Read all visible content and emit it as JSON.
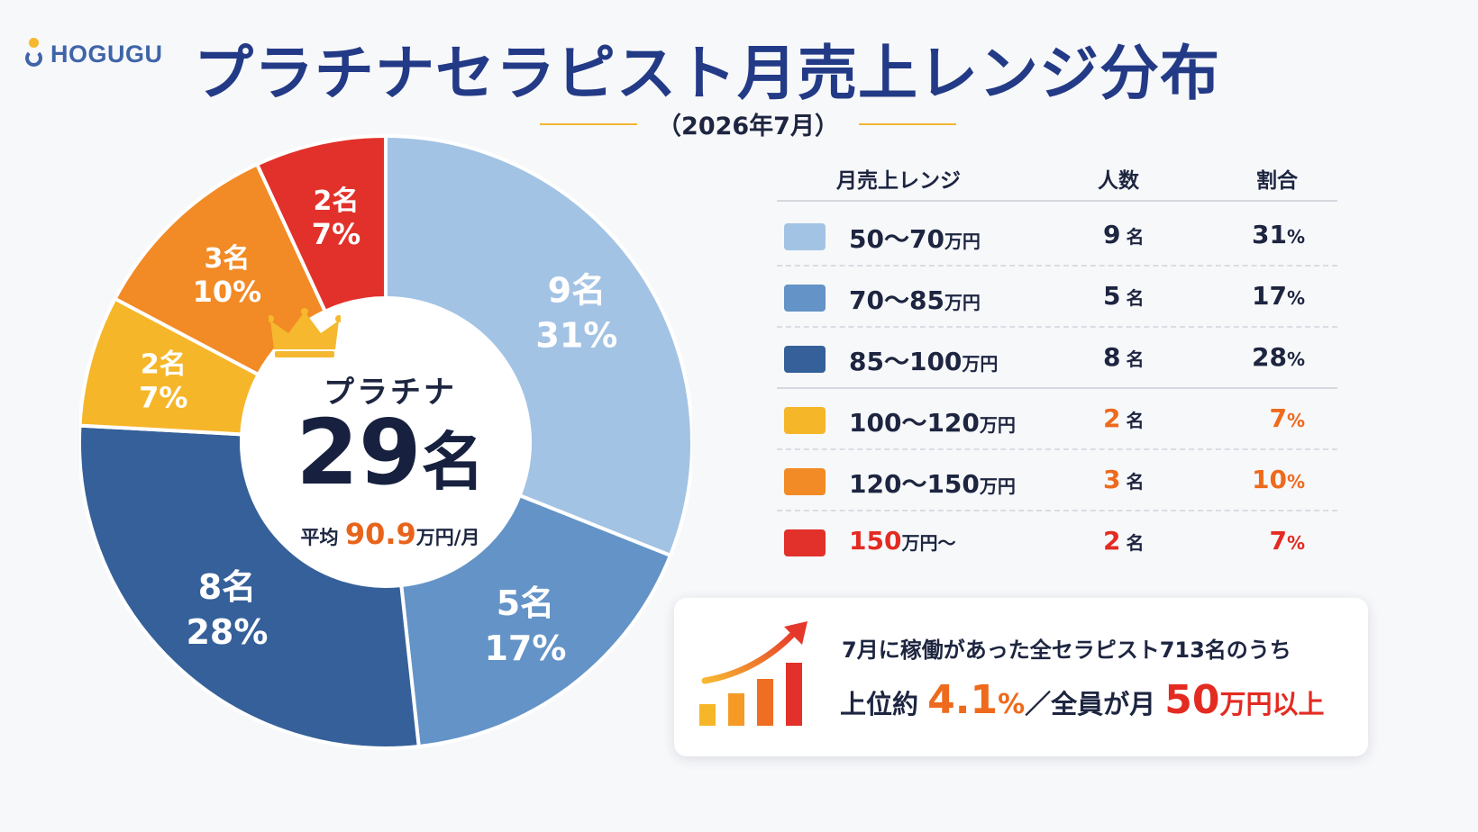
{
  "brand": {
    "logo_text": "HOGUGU"
  },
  "title": "プラチナセラピスト月売上レンジ分布",
  "subtitle": "（2026年7月）",
  "center": {
    "label": "プラチナ",
    "total_count": "29",
    "total_unit": "名",
    "avg_prefix": "平均",
    "avg_value": "90.9",
    "avg_unit": "万円/月"
  },
  "table": {
    "headers": {
      "range": "月売上レンジ",
      "count": "人数",
      "share": "割合"
    },
    "rows": [
      {
        "range": "50〜70",
        "range_unit": "万円",
        "count": "9",
        "count_unit": "名",
        "pct": "31",
        "pct_unit": "%"
      },
      {
        "range": "70〜85",
        "range_unit": "万円",
        "count": "5",
        "count_unit": "名",
        "pct": "17",
        "pct_unit": "%"
      },
      {
        "range": "85〜100",
        "range_unit": "万円",
        "count": "8",
        "count_unit": "名",
        "pct": "28",
        "pct_unit": "%"
      },
      {
        "range": "100〜120",
        "range_unit": "万円",
        "count": "2",
        "count_unit": "名",
        "pct": "7",
        "pct_unit": "%"
      },
      {
        "range": "120〜150",
        "range_unit": "万円",
        "count": "3",
        "count_unit": "名",
        "pct": "10",
        "pct_unit": "%"
      },
      {
        "range": "150",
        "range_unit": "万円〜",
        "count": "2",
        "count_unit": "名",
        "pct": "7",
        "pct_unit": "%"
      }
    ]
  },
  "colors": {
    "seg_50_70": "#a3c3e4",
    "seg_70_85": "#6393c7",
    "seg_85_100": "#35609a",
    "seg_100_120": "#f6b629",
    "seg_120_150": "#f28a25",
    "seg_150_plus": "#e2312a",
    "title": "#233a86",
    "accent_orange": "#ee6a1c",
    "accent_red": "#e32b22"
  },
  "callout": {
    "line1": "7月に稼働があった全セラピスト713名のうち",
    "line2_prefix": "上位約",
    "line2_pct": "4.1",
    "line2_pct_unit": "%",
    "line2_mid": "／全員が月",
    "line2_amount": "50",
    "line2_amount_unit": "万円",
    "line2_suffix": "以上"
  },
  "chart_data": {
    "type": "pie",
    "categories": [
      "50〜70万円",
      "70〜85万円",
      "85〜100万円",
      "100〜120万円",
      "120〜150万円",
      "150万円〜"
    ],
    "values": [
      9,
      5,
      8,
      2,
      3,
      2
    ],
    "percentages": [
      31,
      17,
      28,
      7,
      10,
      7
    ],
    "labels": [
      {
        "count": "9名",
        "pct": "31%"
      },
      {
        "count": "5名",
        "pct": "17%"
      },
      {
        "count": "8名",
        "pct": "28%"
      },
      {
        "count": "2名",
        "pct": "7%"
      },
      {
        "count": "3名",
        "pct": "10%"
      },
      {
        "count": "2名",
        "pct": "7%"
      }
    ],
    "colors": [
      "#a3c3e4",
      "#6393c7",
      "#35609a",
      "#f6b629",
      "#f28a25",
      "#e2312a"
    ],
    "donut": true,
    "start": "top, clockwise",
    "center_total": 29
  }
}
